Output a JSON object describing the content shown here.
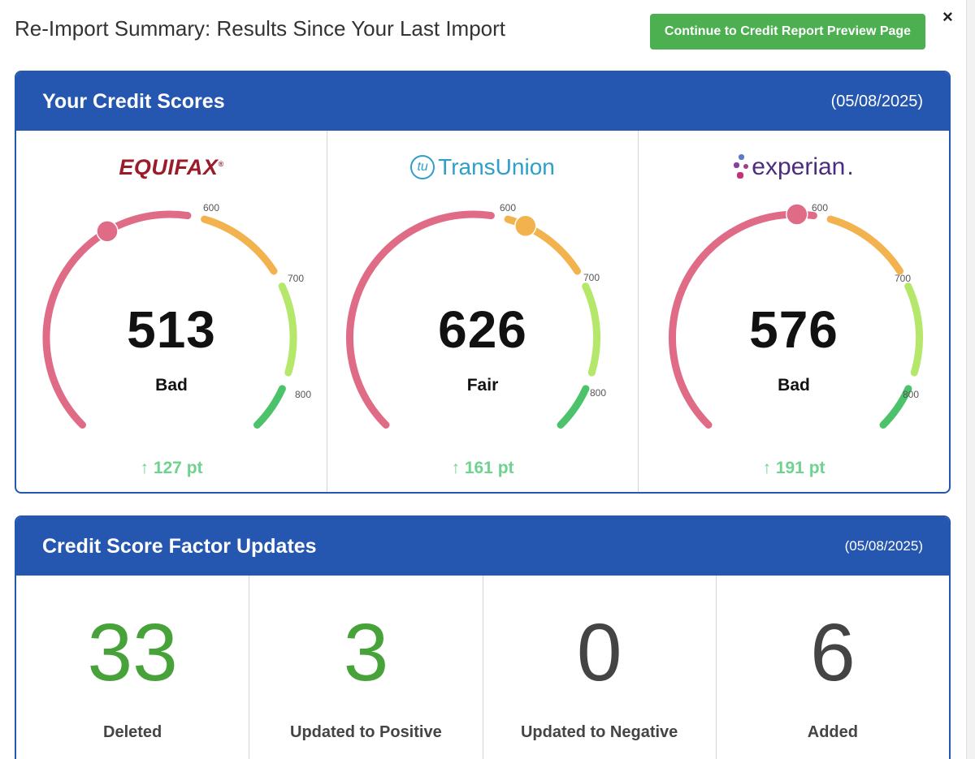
{
  "header": {
    "title": "Re-Import Summary: Results Since Your Last Import",
    "continue_label": "Continue to Credit Report Preview Page",
    "close_label": "×"
  },
  "scores_card": {
    "title": "Your Credit Scores",
    "date": "(05/08/2025)",
    "tick_labels": [
      "600",
      "700",
      "800"
    ],
    "bureaus": [
      {
        "logo_text": "EQUIFAX",
        "logo_mark": "®",
        "score": "513",
        "rating": "Bad",
        "change": "↑ 127 pt",
        "marker_color": "#e06b86",
        "marker_value": 513
      },
      {
        "logo_text": "TransUnion",
        "logo_mark": "tu",
        "score": "626",
        "rating": "Fair",
        "change": "↑ 161 pt",
        "marker_color": "#f2b24d",
        "marker_value": 626
      },
      {
        "logo_text": "experian",
        "logo_mark": ".",
        "score": "576",
        "rating": "Bad",
        "change": "↑ 191 pt",
        "marker_color": "#e06b86",
        "marker_value": 576
      }
    ]
  },
  "factors_card": {
    "title": "Credit Score Factor Updates",
    "date": "(05/08/2025)",
    "items": [
      {
        "value": "33",
        "label": "Deleted",
        "color": "#47a23a"
      },
      {
        "value": "3",
        "label": "Updated to Positive",
        "color": "#47a23a"
      },
      {
        "value": "0",
        "label": "Updated to Negative",
        "color": "#444444"
      },
      {
        "value": "6",
        "label": "Added",
        "color": "#444444"
      }
    ]
  },
  "colors": {
    "brand_blue": "#2556b0",
    "button_green": "#4caf50",
    "gauge_red": "#e06b86",
    "gauge_orange": "#f2b24d",
    "gauge_lightgreen": "#b5e86a",
    "gauge_green": "#4cc26a"
  }
}
